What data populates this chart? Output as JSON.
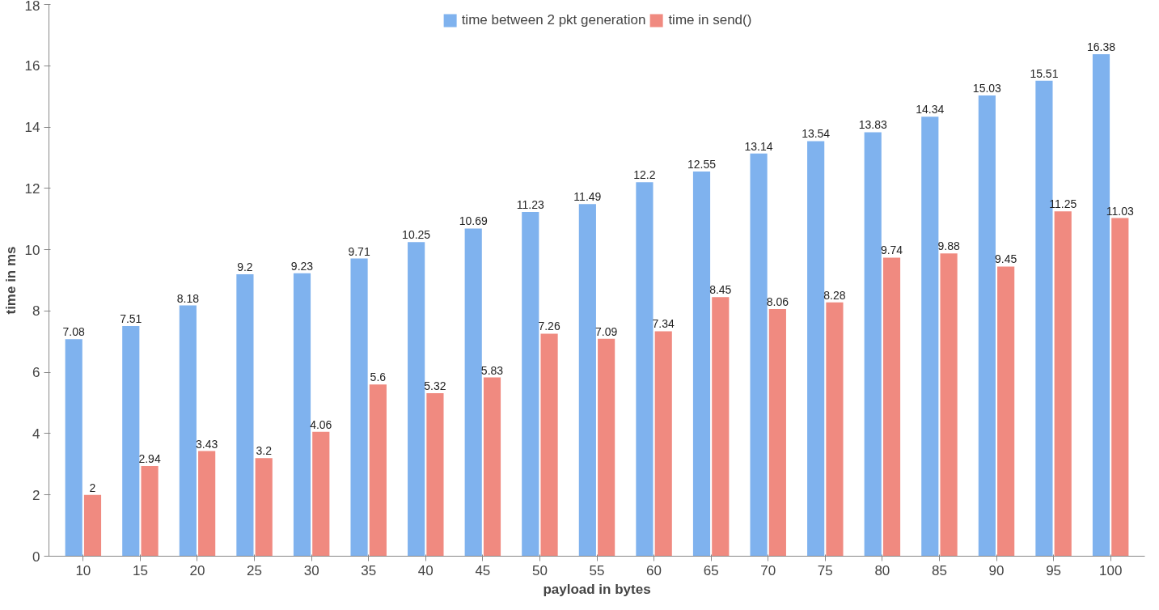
{
  "chart_data": {
    "type": "bar",
    "xlabel": "payload in bytes",
    "ylabel": "time in ms",
    "categories": [
      "10",
      "15",
      "20",
      "25",
      "30",
      "35",
      "40",
      "45",
      "50",
      "55",
      "60",
      "65",
      "70",
      "75",
      "80",
      "85",
      "90",
      "95",
      "100"
    ],
    "series": [
      {
        "name": "time between 2 pkt generation",
        "color": "#7fb2ee",
        "values": [
          7.08,
          7.51,
          8.18,
          9.2,
          9.23,
          9.71,
          10.25,
          10.69,
          11.23,
          11.49,
          12.2,
          12.55,
          13.14,
          13.54,
          13.83,
          14.34,
          15.03,
          15.51,
          16.38
        ]
      },
      {
        "name": "time in send()",
        "color": "#f08a80",
        "values": [
          2,
          2.94,
          3.43,
          3.2,
          4.06,
          5.6,
          5.32,
          5.83,
          7.26,
          7.09,
          7.34,
          8.45,
          8.06,
          8.28,
          9.74,
          9.88,
          9.45,
          11.25,
          11.03
        ]
      }
    ],
    "ylim": [
      0,
      18
    ],
    "yticks": [
      0,
      2,
      4,
      6,
      8,
      10,
      12,
      14,
      16,
      18
    ],
    "grid": false,
    "legend": "top",
    "data_labels": true
  }
}
